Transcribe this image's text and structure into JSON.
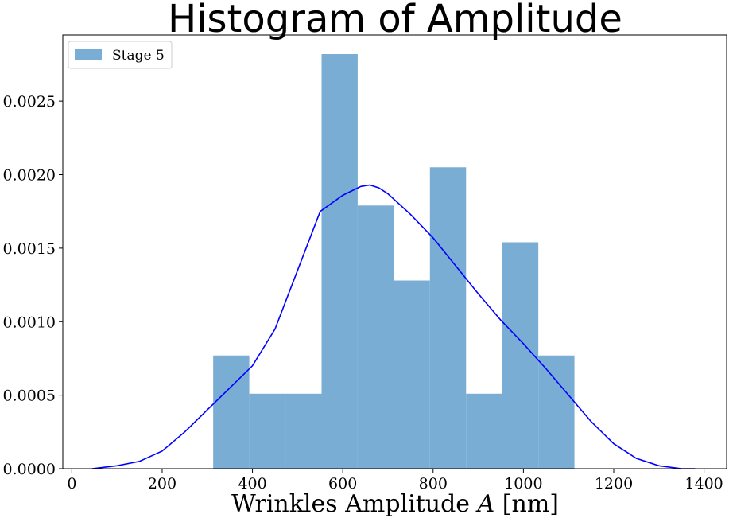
{
  "chart_data": {
    "type": "bar",
    "title": "Histogram of Amplitude",
    "xlabel": "Wrinkles Amplitude A [nm]",
    "xlabel_prefix": "Wrinkles Amplitude ",
    "xlabel_symbol": "A",
    "xlabel_suffix": " [nm]",
    "ylabel": "",
    "xlim": [
      -20,
      1450
    ],
    "ylim": [
      0,
      0.00295
    ],
    "xticks": [
      0,
      200,
      400,
      600,
      800,
      1000,
      1200,
      1400
    ],
    "xtick_labels": [
      "0",
      "200",
      "400",
      "600",
      "800",
      "1000",
      "1200",
      "1400"
    ],
    "yticks": [
      0,
      0.0005,
      0.001,
      0.0015,
      0.002,
      0.0025
    ],
    "ytick_labels": [
      "0.0000",
      "0.0005",
      "0.0010",
      "0.0015",
      "0.0020",
      "0.0025"
    ],
    "grid": false,
    "legend_position": "top-left",
    "colors": {
      "bars": "#7aadd3",
      "kde": "#0000ff"
    },
    "series": [
      {
        "name": "Stage 5",
        "kind": "histogram",
        "bin_edges": [
          313,
          393,
          473,
          553,
          633,
          713,
          793,
          873,
          953,
          1033,
          1113
        ],
        "values": [
          0.00077,
          0.00051,
          0.00051,
          0.00282,
          0.00179,
          0.00128,
          0.00205,
          0.00051,
          0.00154,
          0.00077
        ]
      },
      {
        "kind": "kde",
        "x": [
          45,
          100,
          150,
          200,
          250,
          300,
          350,
          400,
          450,
          500,
          550,
          600,
          640,
          660,
          680,
          700,
          750,
          800,
          850,
          900,
          950,
          1000,
          1050,
          1100,
          1150,
          1200,
          1250,
          1300,
          1350,
          1380
        ],
        "values": [
          0.0,
          2e-05,
          5e-05,
          0.00012,
          0.00025,
          0.0004,
          0.00055,
          0.0007,
          0.00095,
          0.00135,
          0.00175,
          0.00186,
          0.00192,
          0.00193,
          0.00191,
          0.00187,
          0.00173,
          0.00157,
          0.00138,
          0.00119,
          0.00101,
          0.00085,
          0.00068,
          0.0005,
          0.00032,
          0.00017,
          7e-05,
          2e-05,
          0.0,
          0.0
        ]
      }
    ]
  }
}
